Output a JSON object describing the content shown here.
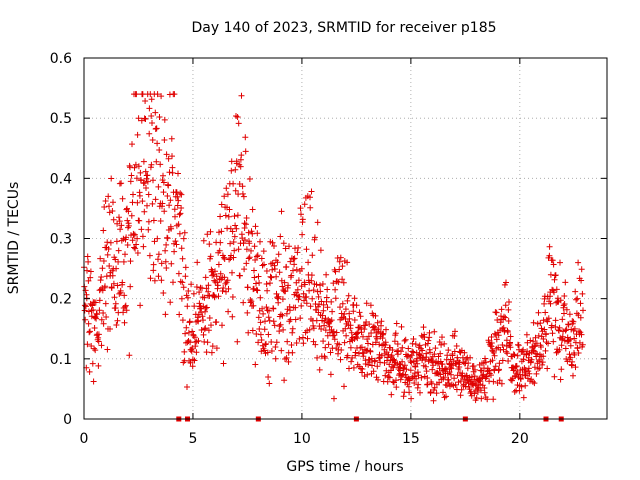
{
  "chart_data": {
    "type": "scatter",
    "title": "Day 140 of 2023, SRMTID for receiver p185",
    "xlabel": "GPS time / hours",
    "ylabel": "SRMTID / TECUs",
    "xlim": [
      0,
      24
    ],
    "ylim": [
      0,
      0.6
    ],
    "xticks": [
      "0",
      "5",
      "10",
      "15",
      "20"
    ],
    "xtick_values": [
      0,
      5,
      10,
      15,
      20
    ],
    "yticks": [
      "0",
      "0.1",
      "0.2",
      "0.3",
      "0.4",
      "0.5",
      "0.6"
    ],
    "ytick_values": [
      0,
      0.1,
      0.2,
      0.3,
      0.4,
      0.5,
      0.6
    ],
    "grid": true,
    "marker": "+",
    "color": "#e00000",
    "envelope": {
      "x": [
        0,
        0.3,
        0.6,
        1.0,
        1.5,
        2.0,
        2.5,
        3.0,
        3.3,
        3.7,
        4.0,
        4.3,
        4.6,
        4.8,
        5.2,
        5.7,
        6.2,
        6.7,
        7.1,
        7.5,
        8.0,
        8.5,
        9.0,
        9.5,
        10.0,
        10.4,
        10.8,
        11.2,
        11.8,
        12.5,
        13.0,
        13.5,
        14.0,
        14.5,
        15.0,
        15.5,
        16.0,
        16.5,
        17.0,
        17.5,
        18.0,
        18.5,
        19.0,
        19.3,
        19.7,
        20.2,
        20.6,
        21.0,
        21.5,
        22.0,
        22.5,
        22.9
      ],
      "y": [
        0.17,
        0.17,
        0.13,
        0.25,
        0.24,
        0.28,
        0.38,
        0.4,
        0.36,
        0.3,
        0.36,
        0.33,
        0.2,
        0.13,
        0.15,
        0.2,
        0.24,
        0.3,
        0.4,
        0.28,
        0.22,
        0.18,
        0.2,
        0.18,
        0.22,
        0.26,
        0.18,
        0.13,
        0.18,
        0.13,
        0.13,
        0.11,
        0.08,
        0.1,
        0.08,
        0.1,
        0.09,
        0.08,
        0.09,
        0.08,
        0.06,
        0.07,
        0.12,
        0.17,
        0.07,
        0.09,
        0.1,
        0.11,
        0.2,
        0.14,
        0.13,
        0.17
      ]
    },
    "point_count": 1600,
    "gap_markers_x": [
      4.35,
      4.75,
      8.0,
      12.5,
      17.5,
      21.2,
      21.9
    ]
  }
}
